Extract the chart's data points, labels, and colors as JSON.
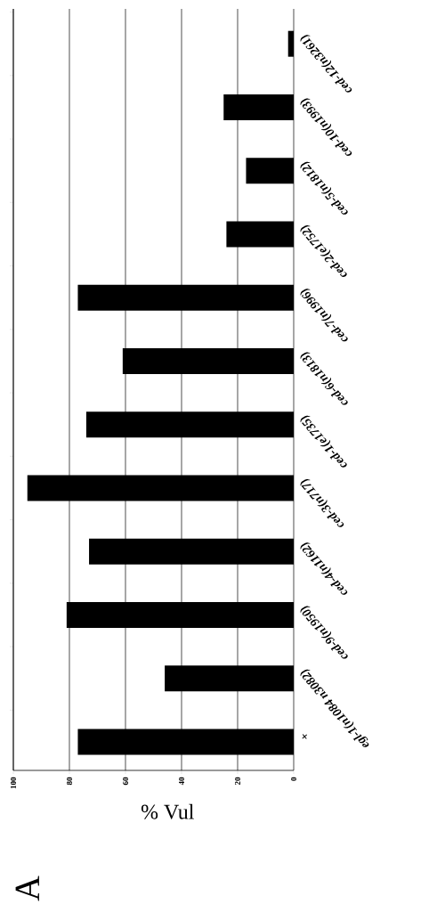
{
  "chart_data": {
    "type": "bar",
    "orientation": "horizontal",
    "xlabel": "% Vul",
    "categories": [
      "ced-12(n3261)",
      "ced-10(n1993)",
      "ced-5(n1812)",
      "ced-2(e1752)",
      "ced-7(n1996)",
      "ced-6(n1813)",
      "ced-1(e1735)",
      "ced-3(n717)",
      "ced-4(n1162)",
      "ced-9(n1950)",
      "egl-1(n1084 n3082)",
      "+"
    ],
    "values": [
      2,
      25,
      17,
      24,
      77,
      61,
      74,
      95,
      73,
      81,
      46,
      77
    ],
    "color": "#000000",
    "xlim": [
      100,
      0
    ],
    "xticks": [
      0,
      20,
      40,
      60,
      80,
      100
    ],
    "grid": "x",
    "annotations": [
      "A"
    ]
  }
}
